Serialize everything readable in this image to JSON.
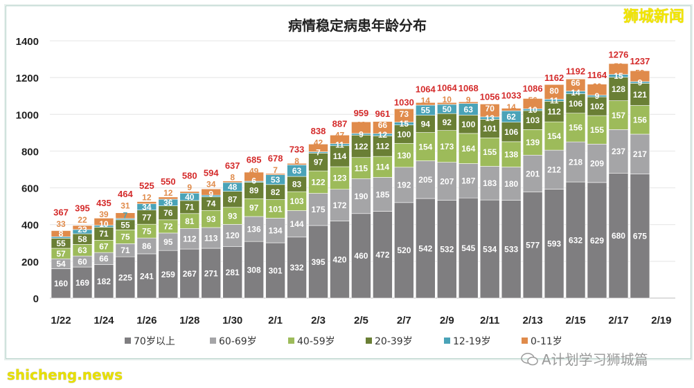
{
  "chart_data": {
    "type": "bar",
    "stacked": true,
    "title": "病情稳定病患年龄分布",
    "categories": [
      "1/22",
      "1/23",
      "1/24",
      "1/25",
      "1/26",
      "1/27",
      "1/28",
      "1/29",
      "1/30",
      "1/31",
      "2/1",
      "2/2",
      "2/3",
      "2/4",
      "2/5",
      "2/6",
      "2/7",
      "2/8",
      "2/9",
      "2/10",
      "2/11",
      "2/12",
      "2/13",
      "2/14",
      "2/15",
      "2/16",
      "2/17",
      "2/18",
      "2/19"
    ],
    "x_tick_labels": [
      "1/22",
      "1/24",
      "1/26",
      "1/28",
      "1/30",
      "2/1",
      "2/3",
      "2/5",
      "2/7",
      "2/9",
      "2/11",
      "2/13",
      "2/15",
      "2/17",
      "2/19"
    ],
    "ylim": [
      0,
      1400
    ],
    "y_ticks": [
      0,
      200,
      400,
      600,
      800,
      1000,
      1200,
      1400
    ],
    "grid": true,
    "legend_position": "bottom",
    "series": [
      {
        "name": "70岁以上",
        "color": "#7f7e80",
        "values": [
          160,
          169,
          182,
          225,
          241,
          259,
          267,
          271,
          281,
          308,
          301,
          332,
          395,
          420,
          460,
          472,
          520,
          542,
          532,
          545,
          534,
          533,
          577,
          593,
          632,
          629,
          680,
          675,
          null
        ]
      },
      {
        "name": "60-69岁",
        "color": "#a5a5a7",
        "values": [
          54,
          60,
          66,
          71,
          86,
          95,
          112,
          113,
          120,
          136,
          134,
          144,
          175,
          172,
          190,
          185,
          192,
          205,
          207,
          187,
          183,
          180,
          201,
          212,
          218,
          209,
          237,
          217,
          null
        ]
      },
      {
        "name": "40-59岁",
        "color": "#9dbb5a",
        "values": [
          57,
          63,
          67,
          75,
          75,
          72,
          81,
          93,
          93,
          97,
          101,
          103,
          122,
          123,
          115,
          114,
          130,
          154,
          173,
          164,
          155,
          138,
          139,
          154,
          156,
          155,
          157,
          156,
          null
        ]
      },
      {
        "name": "20-39岁",
        "color": "#6a7f35",
        "values": [
          55,
          58,
          71,
          55,
          77,
          76,
          71,
          74,
          87,
          89,
          82,
          83,
          97,
          114,
          122,
          112,
          100,
          94,
          92,
          100,
          101,
          106,
          103,
          112,
          106,
          102,
          128,
          121,
          null
        ]
      },
      {
        "name": "12-19岁",
        "color": "#4aa3b8",
        "values": [
          8,
          23,
          10,
          7,
          34,
          36,
          40,
          9,
          48,
          6,
          53,
          63,
          7,
          11,
          9,
          12,
          15,
          55,
          50,
          63,
          13,
          62,
          10,
          11,
          14,
          9,
          15,
          9,
          null
        ]
      },
      {
        "name": "0-11岁",
        "color": "#e08b4b",
        "values": [
          33,
          22,
          39,
          31,
          12,
          12,
          9,
          34,
          8,
          49,
          7,
          8,
          42,
          47,
          63,
          66,
          73,
          14,
          10,
          9,
          70,
          14,
          56,
          80,
          66,
          60,
          59,
          59,
          null
        ]
      }
    ],
    "totals": [
      367,
      395,
      435,
      464,
      525,
      550,
      580,
      594,
      637,
      685,
      678,
      733,
      838,
      887,
      959,
      961,
      1030,
      1064,
      1064,
      1068,
      1056,
      1033,
      1086,
      1162,
      1192,
      1164,
      1276,
      1237,
      null
    ],
    "total_label_color": "#d42a2a"
  },
  "watermarks": {
    "top_right": "狮城新闻",
    "bottom_left": "shicheng.news",
    "wechat": "A计划学习狮城篇"
  }
}
